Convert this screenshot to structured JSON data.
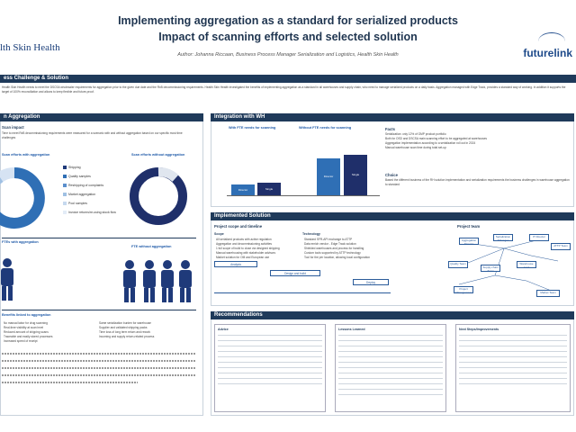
{
  "header": {
    "title_line1": "Implementing aggregation as a standard for serialized products",
    "title_line2": "Impact of scanning efforts and selected solution",
    "author": "Author: Johanna Riccaan, Business Process Manager Serialization and Logistics, Health Skin Health",
    "logo_left": "lth Skin Health",
    "logo_right": "futurelink"
  },
  "sections": {
    "challenge": "ess Challenge & Solution",
    "aggregation": "n Aggregation",
    "integration": "Integration with WH",
    "implemented": "Implemented Solution",
    "recommendations": "Recommendations"
  },
  "challenge_text": "Health Skin Health needs to meet the DSCSA wholesaler requirements for aggregation prior to the given due date and the RxB decommissioning requirements. Health Skin Health investigated the benefits of implementing aggregation as a standard in all warehouses and supply chain, who need to manage serialized products on a daily basis. Aggregation managed with Edge Track, provides a standard way of working. In addition it supports the target of 100% reconciliation and allows to keep flexible and future-proof.",
  "aggregation": {
    "scan_impact": "Scan impact",
    "scan_text": "Time to meet RxB decommissioning requirements were measured for a scenario with and without aggregation based on our specific most time challenges",
    "with_label": "Scan efforts with aggregation",
    "without_label": "Scan efforts without aggregation",
    "legend": [
      "Shipping",
      "Quality samples",
      "Reshipping of complaints",
      "Market aggregation",
      "Pool samples",
      "Invoice returns/re-using stock flow"
    ],
    "ftes_with": "FTEs with aggregation",
    "ftes_without": "FTE without aggregation",
    "benefits_title": "Benefits linked to aggregation",
    "benefits_left": [
      "No manual labor for drug scanning",
      "Real-time visibility at scan level",
      "Reduced amount of shipping scans",
      "Traceable and easily stored processes",
      "Increased speed of receipt"
    ],
    "benefits_right": [
      "Same serialization burden for warehouse",
      "Supplier and validated shipping packs",
      "Time loss of long term return and rework",
      "Incoming and supply return-related process"
    ]
  },
  "integration": {
    "label_with": "With FTE needs for scanning",
    "label_without": "Without FTE needs for scanning",
    "bar1_label": "Director",
    "bar2_label": "Single",
    "bar3_label": "Director",
    "bar4_label": "Single",
    "facts_title": "Facts",
    "facts": [
      "Serialization: only 12% of GMP product portfolio",
      "Both for OSD and DSCSA main scanning effort to be aggregated at warehouses",
      "Aggregation implementation according to a serialization roll out in 2024",
      "Manual warehouse scan time during total set-up"
    ],
    "choice_title": "Choice",
    "choice_text": "Based the different business of the RH solution implementation and serialization requirements the business challenges in warehouse aggregation to standard"
  },
  "implemented": {
    "scope_title": "Project scope and timeline",
    "scope": "Scope",
    "scope_items": [
      "All serialized products with active regulation",
      "Aggregation and decommissioning activities",
      "1 full scope of build to close via designed shipping",
      "Manual warehousing with stakeholder advisors",
      "Market solution for OM and European use"
    ],
    "technology": "Technology",
    "tech_items": [
      "Standard SFR-API exchange to ATTP",
      "Data enrich vendor - Edge Track solution",
      "Shielded warehouses and process for handling",
      "Custom tools supported by ATTP technology",
      "Tool for the per location, allowing local configuration"
    ],
    "timeline": [
      "Analysis",
      "Design and build",
      "Deploy"
    ],
    "project_team": "Project team",
    "team_nodes": [
      "Aggregation Director",
      "Serialization Manager",
      "Quality Team",
      "Supply chain Team",
      "IT Director",
      "ATTP Team",
      "Warehouse lead",
      "Project Management",
      "Market Team"
    ]
  },
  "recommendations": {
    "advice": "Advice",
    "lessons": "Lessons Learned",
    "next": "Next Steps/Improvements"
  }
}
